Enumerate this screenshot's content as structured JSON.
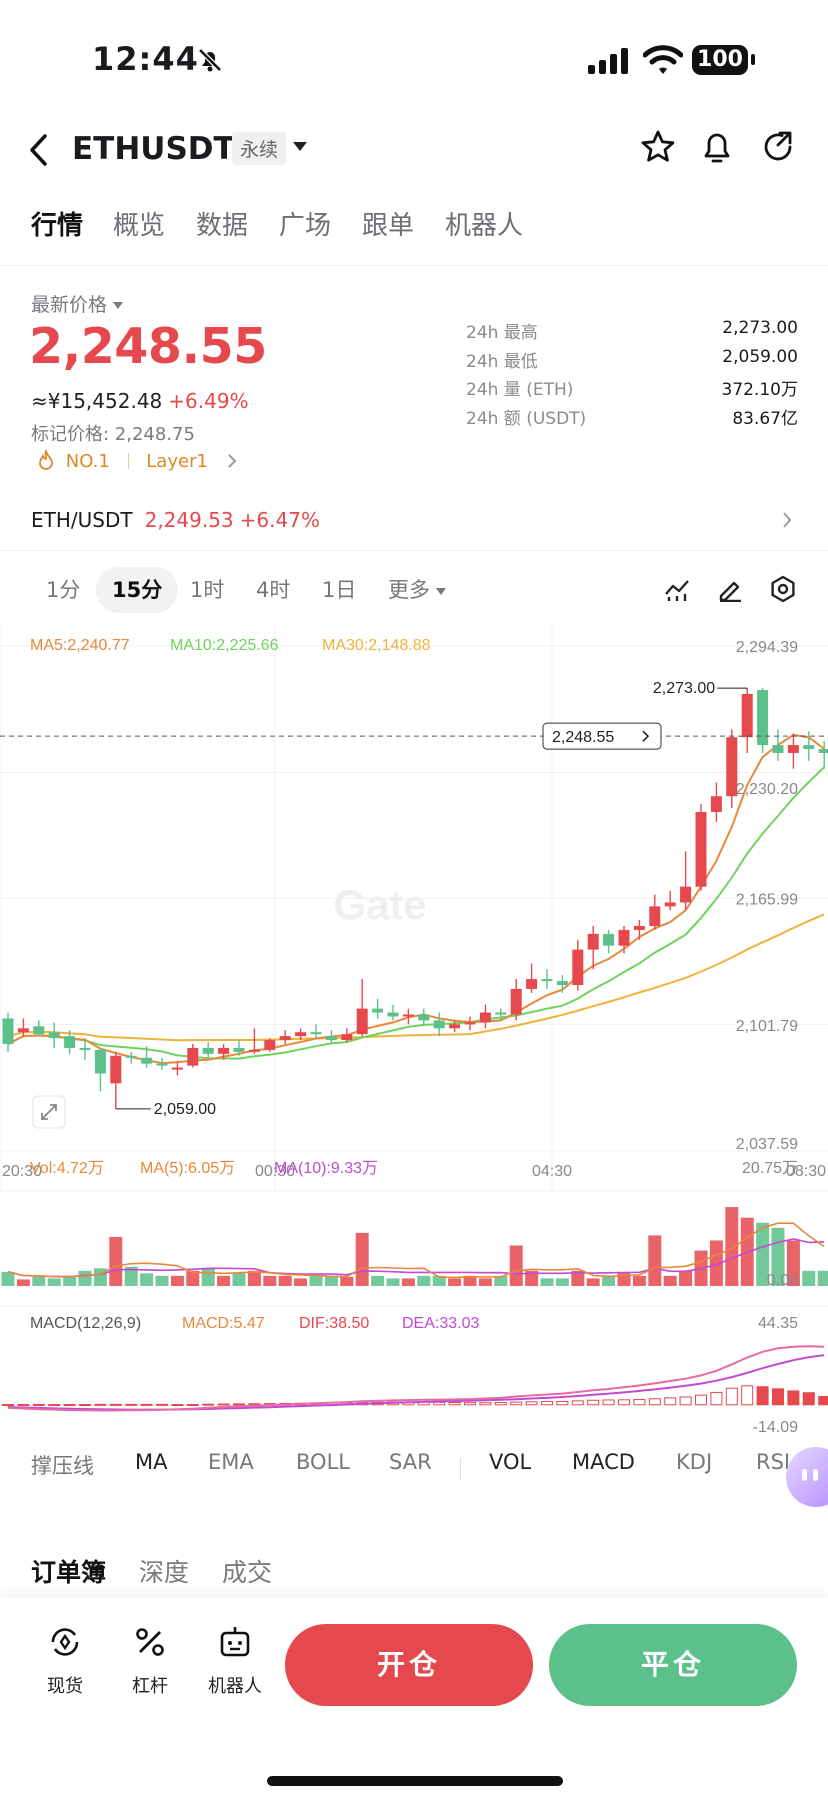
{
  "status": {
    "time": "12:44",
    "battery": "100",
    "icons": [
      "bell-slash-icon",
      "signal-icon",
      "wifi-icon",
      "battery-icon"
    ]
  },
  "header": {
    "symbol": "ETHUSDT",
    "tag": "永续",
    "icons": [
      "back-icon",
      "star-icon",
      "bell-icon",
      "share-icon"
    ]
  },
  "nav": {
    "tabs": [
      "行情",
      "概览",
      "数据",
      "广场",
      "跟单",
      "机器人"
    ],
    "active": "行情"
  },
  "ticker": {
    "label": "最新价格",
    "price": "2,248.55",
    "cny": "≈¥15,452.48",
    "change": "+6.49%",
    "mark_price": "标记价格: 2,248.75",
    "rank": "NO.1",
    "category": "Layer1",
    "stats": [
      {
        "k": "24h  最高",
        "v": "2,273.00"
      },
      {
        "k": "24h  最低",
        "v": "2,059.00"
      },
      {
        "k": "24h  量 (ETH)",
        "v": "372.10万"
      },
      {
        "k": "24h  额 (USDT)",
        "v": "83.67亿"
      }
    ]
  },
  "pair": {
    "name": "ETH/USDT",
    "price": "2,249.53",
    "change": "+6.47%"
  },
  "timeframes": {
    "items": [
      "1分",
      "15分",
      "1时",
      "4时",
      "1日",
      "更多"
    ],
    "active": "15分"
  },
  "chart": {
    "ma_legend": {
      "ma5": "MA5:2,240.77",
      "ma10": "MA10:2,225.66",
      "ma30": "MA30:2,148.88"
    },
    "y_ticks": [
      "2,294.39",
      "2,230.20",
      "2,165.99",
      "2,101.79",
      "2,037.59"
    ],
    "x_ticks": [
      "20:30",
      "00:30",
      "04:30",
      "08:30"
    ],
    "high_label": "2,273.00",
    "low_label": "2,059.00",
    "last_price_tag": "2,248.55",
    "watermark": "Gate",
    "colors": {
      "up": "#e5484d",
      "down": "#5cc08a",
      "ma5": "#e8893a",
      "ma10": "#6fd35e",
      "ma30": "#f0b23c",
      "macd_dea": "#c04ad6"
    },
    "vol_legend": {
      "vol": "Vol:4.72万",
      "ma5": "MA(5):6.05万",
      "ma10": "MA(10):9.33万"
    },
    "vol_ticks": [
      "20.75万",
      "0.00"
    ],
    "macd_legend": {
      "name": "MACD(12,26,9)",
      "macd": "MACD:5.47",
      "dif": "DIF:38.50",
      "dea": "DEA:33.03"
    },
    "macd_ticks": [
      "44.35",
      "-14.09"
    ]
  },
  "chart_data": {
    "type": "candlestick",
    "y_range": [
      2037.59,
      2294.39
    ],
    "candles": [
      {
        "o": 2105,
        "h": 2108,
        "l": 2088,
        "c": 2092
      },
      {
        "o": 2098,
        "h": 2105,
        "l": 2096,
        "c": 2100
      },
      {
        "o": 2101,
        "h": 2104,
        "l": 2096,
        "c": 2097
      },
      {
        "o": 2098,
        "h": 2103,
        "l": 2090,
        "c": 2095
      },
      {
        "o": 2096,
        "h": 2099,
        "l": 2087,
        "c": 2090
      },
      {
        "o": 2090,
        "h": 2095,
        "l": 2084,
        "c": 2089
      },
      {
        "o": 2089,
        "h": 2090,
        "l": 2068,
        "c": 2077
      },
      {
        "o": 2072,
        "h": 2088,
        "l": 2059,
        "c": 2086
      },
      {
        "o": 2086,
        "h": 2088,
        "l": 2082,
        "c": 2085
      },
      {
        "o": 2085,
        "h": 2091,
        "l": 2080,
        "c": 2082
      },
      {
        "o": 2082,
        "h": 2085,
        "l": 2079,
        "c": 2081
      },
      {
        "o": 2079,
        "h": 2083,
        "l": 2076,
        "c": 2080
      },
      {
        "o": 2081,
        "h": 2092,
        "l": 2080,
        "c": 2090
      },
      {
        "o": 2090,
        "h": 2093,
        "l": 2085,
        "c": 2087
      },
      {
        "o": 2087,
        "h": 2092,
        "l": 2084,
        "c": 2090
      },
      {
        "o": 2090,
        "h": 2094,
        "l": 2086,
        "c": 2088
      },
      {
        "o": 2088,
        "h": 2100,
        "l": 2087,
        "c": 2089
      },
      {
        "o": 2089,
        "h": 2095,
        "l": 2088,
        "c": 2094
      },
      {
        "o": 2094,
        "h": 2099,
        "l": 2092,
        "c": 2096
      },
      {
        "o": 2096,
        "h": 2100,
        "l": 2094,
        "c": 2098
      },
      {
        "o": 2098,
        "h": 2102,
        "l": 2095,
        "c": 2097
      },
      {
        "o": 2096,
        "h": 2099,
        "l": 2092,
        "c": 2094
      },
      {
        "o": 2094,
        "h": 2100,
        "l": 2093,
        "c": 2097
      },
      {
        "o": 2097,
        "h": 2125,
        "l": 2096,
        "c": 2110
      },
      {
        "o": 2110,
        "h": 2115,
        "l": 2105,
        "c": 2108
      },
      {
        "o": 2108,
        "h": 2112,
        "l": 2104,
        "c": 2106
      },
      {
        "o": 2106,
        "h": 2110,
        "l": 2102,
        "c": 2107
      },
      {
        "o": 2107,
        "h": 2110,
        "l": 2101,
        "c": 2104
      },
      {
        "o": 2104,
        "h": 2108,
        "l": 2096,
        "c": 2100
      },
      {
        "o": 2100,
        "h": 2104,
        "l": 2098,
        "c": 2102
      },
      {
        "o": 2102,
        "h": 2106,
        "l": 2099,
        "c": 2103
      },
      {
        "o": 2103,
        "h": 2112,
        "l": 2100,
        "c": 2108
      },
      {
        "o": 2108,
        "h": 2110,
        "l": 2104,
        "c": 2107
      },
      {
        "o": 2107,
        "h": 2125,
        "l": 2104,
        "c": 2120
      },
      {
        "o": 2120,
        "h": 2133,
        "l": 2118,
        "c": 2125
      },
      {
        "o": 2125,
        "h": 2130,
        "l": 2120,
        "c": 2124
      },
      {
        "o": 2124,
        "h": 2127,
        "l": 2118,
        "c": 2122
      },
      {
        "o": 2122,
        "h": 2145,
        "l": 2119,
        "c": 2140
      },
      {
        "o": 2140,
        "h": 2152,
        "l": 2130,
        "c": 2148
      },
      {
        "o": 2148,
        "h": 2150,
        "l": 2138,
        "c": 2142
      },
      {
        "o": 2142,
        "h": 2152,
        "l": 2138,
        "c": 2150
      },
      {
        "o": 2150,
        "h": 2155,
        "l": 2145,
        "c": 2152
      },
      {
        "o": 2152,
        "h": 2168,
        "l": 2150,
        "c": 2162
      },
      {
        "o": 2162,
        "h": 2170,
        "l": 2160,
        "c": 2164
      },
      {
        "o": 2164,
        "h": 2190,
        "l": 2160,
        "c": 2172
      },
      {
        "o": 2172,
        "h": 2214,
        "l": 2170,
        "c": 2210
      },
      {
        "o": 2210,
        "h": 2225,
        "l": 2205,
        "c": 2218
      },
      {
        "o": 2218,
        "h": 2252,
        "l": 2212,
        "c": 2248
      },
      {
        "o": 2248,
        "h": 2273,
        "l": 2240,
        "c": 2270
      },
      {
        "o": 2272,
        "h": 2273,
        "l": 2240,
        "c": 2244
      },
      {
        "o": 2244,
        "h": 2252,
        "l": 2236,
        "c": 2240
      },
      {
        "o": 2240,
        "h": 2250,
        "l": 2232,
        "c": 2244
      },
      {
        "o": 2244,
        "h": 2251,
        "l": 2236,
        "c": 2242
      },
      {
        "o": 2242,
        "h": 2246,
        "l": 2232,
        "c": 2240
      }
    ],
    "volume": [
      2.8,
      1.3,
      1.8,
      1.5,
      2.0,
      3.0,
      3.5,
      9.7,
      3.8,
      2.5,
      2.0,
      2.0,
      3.0,
      3.5,
      2.0,
      2.5,
      3.0,
      2.0,
      2.0,
      1.5,
      2.0,
      2.0,
      1.8,
      10.5,
      2.0,
      1.5,
      1.5,
      2.0,
      2.0,
      1.5,
      2.0,
      1.5,
      2.0,
      8.0,
      3.0,
      1.5,
      1.5,
      3.0,
      1.5,
      2.0,
      2.5,
      2.0,
      10.0,
      2.0,
      3.0,
      7.0,
      9.0,
      15.6,
      13.5,
      12.5,
      11.5,
      9.0,
      3.0,
      3.0
    ],
    "macd_hist": [
      0.2,
      0.2,
      0.2,
      0.2,
      0.2,
      0.2,
      0.3,
      0.3,
      0.3,
      0.3,
      0.3,
      0.2,
      0.2,
      0.4,
      0.5,
      0.6,
      0.7,
      0.8,
      0.9,
      1.0,
      1.1,
      1.2,
      1.3,
      1.6,
      1.6,
      1.7,
      1.8,
      1.8,
      1.6,
      1.5,
      1.4,
      1.4,
      1.5,
      1.8,
      2.0,
      2.2,
      2.2,
      2.6,
      3.0,
      3.2,
      3.3,
      3.5,
      4.0,
      4.6,
      5.2,
      6.4,
      8.2,
      11.0,
      12.6,
      12.0,
      10.6,
      9.2,
      8.0,
      5.5
    ],
    "dif": [
      -2,
      -2.5,
      -3,
      -3.2,
      -3.5,
      -3.6,
      -3.8,
      -3.8,
      -3.6,
      -3.5,
      -3.3,
      -3,
      -2.6,
      -2,
      -1.5,
      -1,
      -0.6,
      -0.2,
      0.2,
      0.6,
      1,
      1.4,
      1.8,
      2.3,
      2.6,
      2.9,
      3.1,
      3.3,
      3.4,
      3.6,
      3.8,
      4.2,
      4.6,
      5.5,
      6.2,
      6.8,
      7.4,
      8.5,
      9.6,
      10.5,
      11.6,
      12.8,
      14.2,
      15.8,
      17.3,
      19.5,
      22.6,
      26.8,
      31.4,
      35.2,
      37.5,
      38.5,
      38.9,
      38.5
    ],
    "dea": [
      -1.5,
      -1.8,
      -2.1,
      -2.4,
      -2.6,
      -2.8,
      -3,
      -3.1,
      -3.2,
      -3.2,
      -3.2,
      -3.1,
      -3,
      -2.8,
      -2.5,
      -2.2,
      -1.9,
      -1.6,
      -1.2,
      -0.9,
      -0.5,
      -0.2,
      0.2,
      0.6,
      1,
      1.3,
      1.6,
      1.9,
      2.2,
      2.5,
      2.7,
      3,
      3.3,
      3.7,
      4.2,
      4.6,
      5.2,
      5.8,
      6.6,
      7.4,
      8.2,
      9.2,
      10.2,
      11.4,
      12.6,
      14.1,
      16,
      18.4,
      21.2,
      24.3,
      27.1,
      29.6,
      31.6,
      33
    ]
  },
  "indicators": {
    "items": [
      "撑压线",
      "MA",
      "EMA",
      "BOLL",
      "SAR",
      "VOL",
      "MACD",
      "KDJ",
      "RSI"
    ]
  },
  "orderbook": {
    "tabs": [
      "订单簿",
      "深度",
      "成交"
    ]
  },
  "bottom": {
    "spot": "现货",
    "leverage": "杠杆",
    "bot": "机器人",
    "open": "开仓",
    "close": "平仓"
  }
}
